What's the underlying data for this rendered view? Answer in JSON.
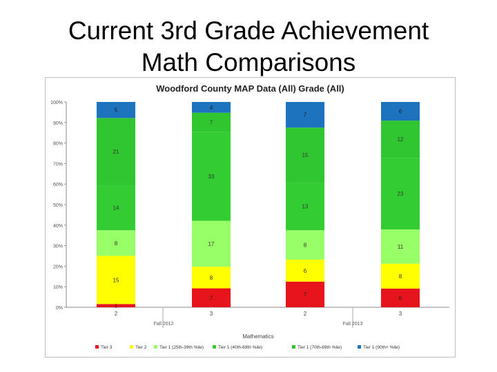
{
  "slide": {
    "title_line1": "Current 3rd Grade Achievement",
    "title_line2": "Math Comparisons"
  },
  "chart_data": {
    "type": "bar",
    "stacked": "percent",
    "title": "Woodford County MAP Data (All) Grade (All)",
    "xlabel": "Mathematics",
    "ylim": [
      0,
      100
    ],
    "y_ticks": [
      "0%",
      "10%",
      "20%",
      "30%",
      "40%",
      "50%",
      "60%",
      "70%",
      "80%",
      "90%",
      "100%"
    ],
    "categories": [
      "2",
      "3",
      "2",
      "3"
    ],
    "groups": [
      {
        "label": "Fall 2012",
        "categories": [
          0,
          1
        ]
      },
      {
        "label": "Fall 2013",
        "categories": [
          2,
          3
        ]
      }
    ],
    "series": [
      {
        "name": "Tier 3",
        "color": "#e8141c",
        "values": [
          1,
          7,
          7,
          6
        ]
      },
      {
        "name": "Tier 2",
        "color": "#ffff00",
        "values": [
          15,
          8,
          6,
          8
        ]
      },
      {
        "name": "Tier 1 (25th-39th %ile)",
        "color": "#99ff66",
        "values": [
          8,
          17,
          8,
          11
        ]
      },
      {
        "name": "Tier 1 (40th-69th %ile)",
        "color": "#33cc33",
        "values": [
          14,
          33,
          13,
          23
        ]
      },
      {
        "name": "Tier 1 (70th-89th %ile)",
        "color": "#2fc62f",
        "values": [
          21,
          7,
          15,
          12
        ]
      },
      {
        "name": "Tier 1 (90th+ %ile)",
        "color": "#1e73be",
        "values": [
          5,
          4,
          7,
          6
        ]
      }
    ],
    "grid": false,
    "legend": "bottom"
  }
}
